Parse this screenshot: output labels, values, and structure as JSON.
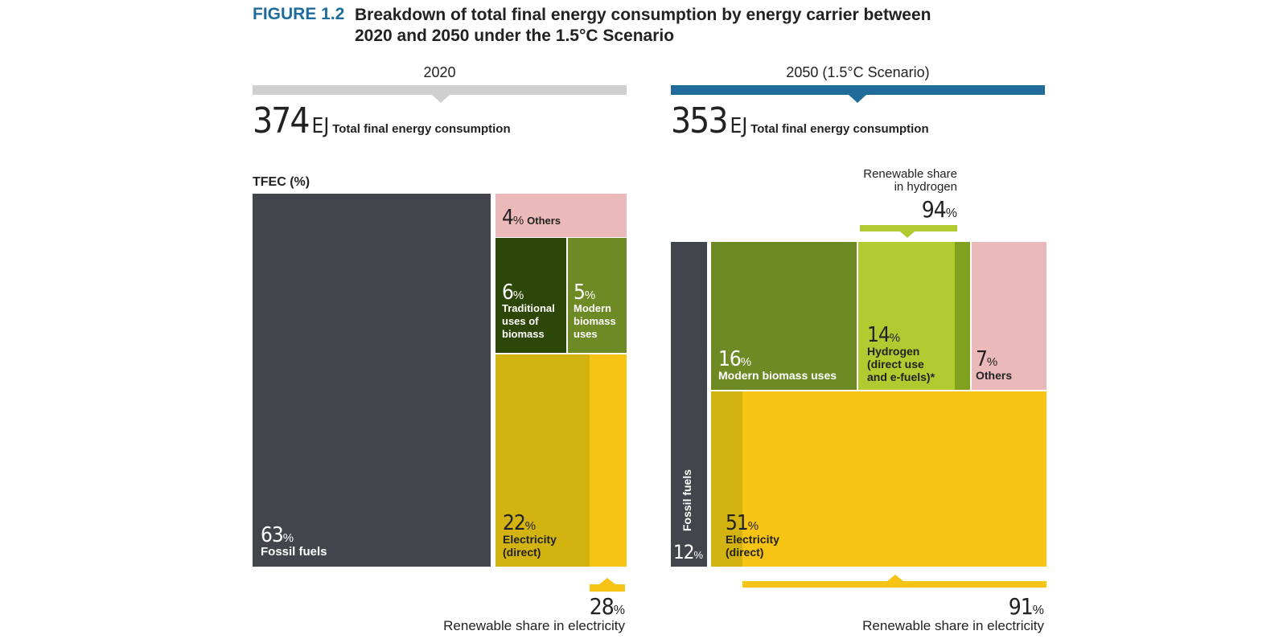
{
  "figure": {
    "label": "FIGURE 1.2",
    "title": "Breakdown of total final energy consumption by energy carrier between 2020 and 2050 under the 1.5°C Scenario"
  },
  "colors": {
    "fossil": "#42454b",
    "others": "#ebb9b9",
    "traditional_biomass": "#2c4707",
    "modern_biomass": "#6d8a24",
    "hydrogen": "#b1ca2f",
    "hydrogen_nonrenewable": "#7fa11e",
    "electricity": "#d2b30f",
    "electricity_renewable": "#f7c314",
    "bar_2020": "#cfcfcf",
    "bar_2050": "#1f6c9b",
    "title_blue": "#1f6c9b"
  },
  "chart_data": [
    {
      "type": "treemap",
      "year_label": "2020",
      "total_value": "374",
      "total_unit": "EJ",
      "total_caption": "Total final energy consumption",
      "axis_label": "TFEC (%)",
      "segments": [
        {
          "name": "Fossil fuels",
          "value": 63
        },
        {
          "name": "Others",
          "value": 4
        },
        {
          "name": "Traditional uses of biomass",
          "value": 6
        },
        {
          "name": "Modern biomass uses",
          "value": 5
        },
        {
          "name": "Electricity (direct)",
          "value": 22
        }
      ],
      "renewable_share_electricity": 28,
      "renewable_share_electricity_label": "Renewable share in electricity"
    },
    {
      "type": "treemap",
      "year_label": "2050 (1.5°C Scenario)",
      "total_value": "353",
      "total_unit": "EJ",
      "total_caption": "Total final energy consumption",
      "segments": [
        {
          "name": "Fossil fuels",
          "value": 12
        },
        {
          "name": "Modern biomass uses",
          "value": 16
        },
        {
          "name": "Hydrogen (direct use and e-fuels)*",
          "value": 14
        },
        {
          "name": "Others",
          "value": 7
        },
        {
          "name": "Electricity (direct)",
          "value": 51
        }
      ],
      "renewable_share_hydrogen": 94,
      "renewable_share_hydrogen_label": "Renewable share in hydrogen",
      "renewable_share_electricity": 91,
      "renewable_share_electricity_label": "Renewable share in electricity"
    }
  ],
  "labels": {
    "pct_sign": "%",
    "y2020": {
      "fossil_pct": "63",
      "fossil_name": "Fossil fuels",
      "others_pct": "4",
      "others_name": "Others",
      "trad_pct": "6",
      "trad_name_1": "Traditional",
      "trad_name_2": "uses of",
      "trad_name_3": "biomass",
      "modern_pct": "5",
      "modern_name_1": "Modern",
      "modern_name_2": "biomass",
      "modern_name_3": "uses",
      "elec_pct": "22",
      "elec_name_1": "Electricity",
      "elec_name_2": "(direct)",
      "ren_pct": "28",
      "ren_name": "Renewable share in electricity"
    },
    "y2050": {
      "fossil_pct": "12",
      "fossil_name": "Fossil fuels",
      "modern_pct": "16",
      "modern_name": "Modern biomass uses",
      "hyd_pct": "14",
      "hyd_name_1": "Hydrogen",
      "hyd_name_2": "(direct use",
      "hyd_name_3": "and e-fuels)*",
      "others_pct": "7",
      "others_name": "Others",
      "elec_pct": "51",
      "elec_name_1": "Electricity",
      "elec_name_2": "(direct)",
      "hren_pct": "94",
      "hren_name_1": "Renewable share",
      "hren_name_2": "in hydrogen",
      "ren_pct": "91",
      "ren_name": "Renewable share in electricity"
    }
  }
}
